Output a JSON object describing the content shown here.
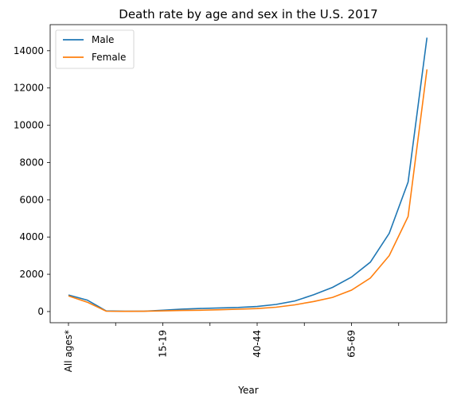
{
  "chart_data": {
    "type": "line",
    "title": "Death rate by age and sex in the U.S. 2017",
    "xlabel": "Year",
    "ylabel": "",
    "categories": [
      "All ages*",
      "",
      "",
      "",
      "",
      "15-19",
      "",
      "",
      "",
      "",
      "40-44",
      "",
      "",
      "",
      "",
      "65-69",
      "",
      "",
      "",
      "",
      ""
    ],
    "x_tick_labels": [
      "All ages*",
      "",
      "15-19",
      "",
      "40-44",
      "",
      "65-69",
      ""
    ],
    "x_tick_indices": [
      0,
      2.5,
      5,
      7.5,
      10,
      12.5,
      15,
      17.5
    ],
    "ylim": [
      -600,
      15400
    ],
    "y_ticks": [
      0,
      2000,
      4000,
      6000,
      8000,
      10000,
      12000,
      14000
    ],
    "grid": false,
    "legend_position": "top-left",
    "series": [
      {
        "name": "Male",
        "color": "#1f77b4",
        "values": [
          890,
          610,
          30,
          15,
          20,
          70,
          130,
          165,
          195,
          220,
          270,
          380,
          570,
          900,
          1300,
          1850,
          2650,
          4200,
          6950,
          14700,
          14700
        ]
      },
      {
        "name": "Female",
        "color": "#ff7f0e",
        "values": [
          840,
          500,
          20,
          10,
          15,
          35,
          55,
          70,
          95,
          125,
          160,
          230,
          360,
          540,
          760,
          1150,
          1800,
          3000,
          5100,
          13000,
          13000
        ]
      }
    ]
  }
}
